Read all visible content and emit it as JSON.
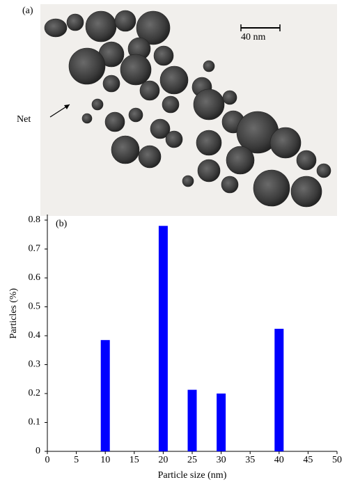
{
  "image": {
    "panel_label": "(a)",
    "scale_bar_label": "40 nm",
    "annotation": "Net"
  },
  "chart_data": {
    "type": "bar",
    "panel_label": "(b)",
    "x_label": "Particle size (nm)",
    "y_label": "Particles (%)",
    "x": [
      10,
      20,
      25,
      30,
      40
    ],
    "values": [
      0.385,
      0.78,
      0.213,
      0.2,
      0.424
    ],
    "color": "#0000ff",
    "xlim": [
      0,
      50
    ],
    "xticks": [
      0,
      5,
      10,
      15,
      20,
      25,
      30,
      35,
      40,
      45,
      50
    ],
    "ylim": [
      0,
      0.8
    ],
    "yticks": [
      0,
      0.1,
      0.2,
      0.3,
      0.4,
      0.5,
      0.6,
      0.7,
      0.8
    ],
    "grid": false
  }
}
